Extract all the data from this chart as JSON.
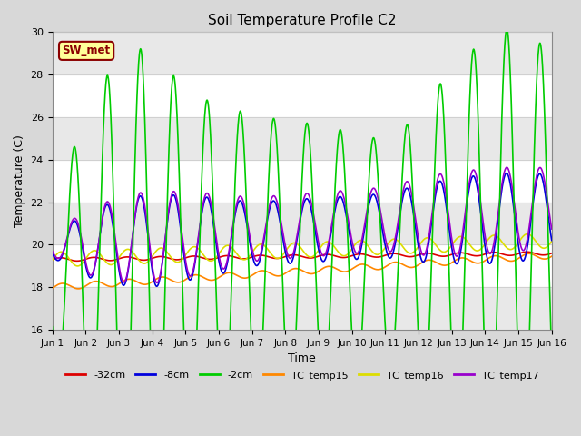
{
  "title": "Soil Temperature Profile C2",
  "xlabel": "Time",
  "ylabel": "Temperature (C)",
  "ylim": [
    16,
    30
  ],
  "xlim": [
    0,
    15
  ],
  "xtick_labels": [
    "Jun 1",
    "Jun 2",
    "Jun 3",
    "Jun 4",
    "Jun 5",
    "Jun 6",
    "Jun 7",
    "Jun 8",
    "Jun 9",
    "Jun 10",
    "Jun 11",
    "Jun 12",
    "Jun 13",
    "Jun 14",
    "Jun 15",
    "Jun 16"
  ],
  "bg_color": "#d8d8d8",
  "plot_bg_color": "#ffffff",
  "band_color": "#e8e8e8",
  "label_box": "SW_met",
  "label_box_bg": "#ffff99",
  "label_box_edge": "#8b0000",
  "label_box_text": "#8b0000",
  "lines": {
    "-32cm": {
      "color": "#dd0000",
      "lw": 1.2
    },
    "-8cm": {
      "color": "#0000dd",
      "lw": 1.2
    },
    "-2cm": {
      "color": "#00cc00",
      "lw": 1.2
    },
    "TC_temp15": {
      "color": "#ff8800",
      "lw": 1.2
    },
    "TC_temp16": {
      "color": "#dddd00",
      "lw": 1.2
    },
    "TC_temp17": {
      "color": "#9900cc",
      "lw": 1.2
    }
  },
  "figsize": [
    6.4,
    4.8
  ],
  "dpi": 100
}
